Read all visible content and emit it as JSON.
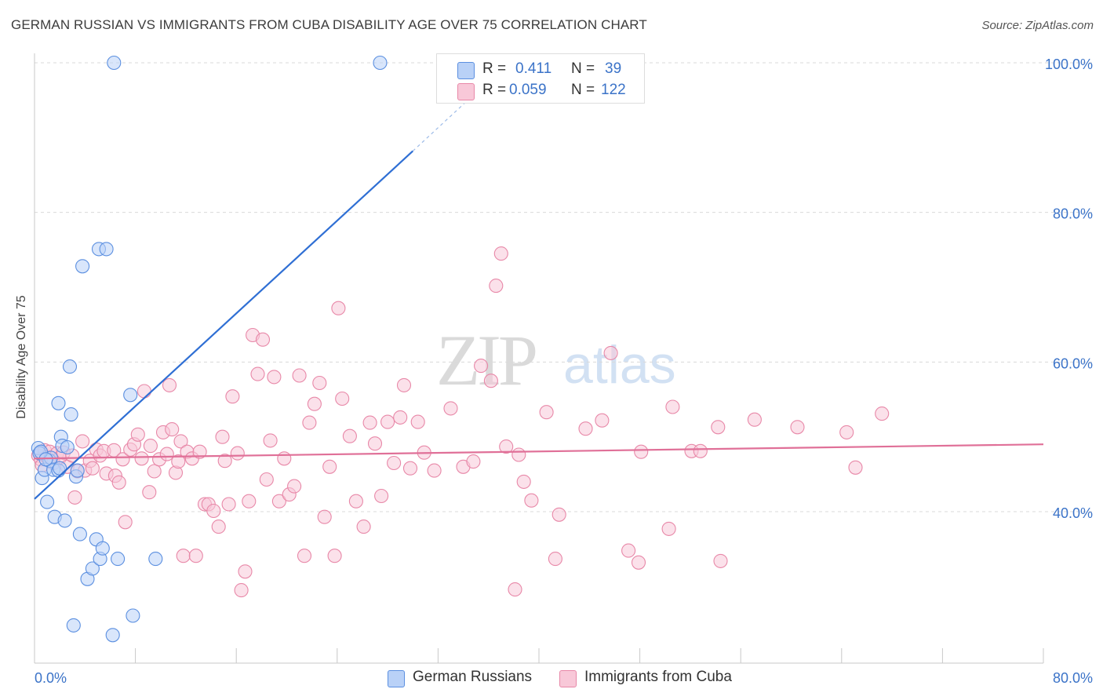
{
  "colors": {
    "series1": "#5b8fe0",
    "series1_fill": "#b9d1f7",
    "series1_line": "#2f6fd4",
    "series2": "#e888a8",
    "series2_fill": "#f8c8d8",
    "series2_line": "#e07098",
    "axis_text": "#3b73c8",
    "grid": "#d9d9d9",
    "watermark": "#dadada"
  },
  "header": {
    "title": "GERMAN RUSSIAN VS IMMIGRANTS FROM CUBA DISABILITY AGE OVER 75 CORRELATION CHART",
    "source": "Source: ZipAtlas.com"
  },
  "legend": {
    "r_label": "R =",
    "n_label": "N =",
    "rows": [
      {
        "r": "0.411",
        "n": "39"
      },
      {
        "r": "0.059",
        "n": "122"
      }
    ]
  },
  "watermark": {
    "zip": "ZIP",
    "atlas": "atlas"
  },
  "chart_data": {
    "type": "scatter",
    "title": "GERMAN RUSSIAN VS IMMIGRANTS FROM CUBA DISABILITY AGE OVER 75 CORRELATION CHART",
    "xlabel": "",
    "ylabel": "Disability Age Over 75",
    "xlim": [
      0,
      80
    ],
    "ylim": [
      22,
      102
    ],
    "x_tick_labels": [
      "0.0%",
      "80.0%"
    ],
    "y_ticks": [
      40,
      60,
      80,
      100
    ],
    "y_tick_labels": [
      "40.0%",
      "60.0%",
      "80.0%",
      "100.0%"
    ],
    "grid": true,
    "legend_position": "top-center",
    "series": [
      {
        "name": "German Russians",
        "r": 0.411,
        "n": 39,
        "trend": {
          "x": [
            0,
            30.0
          ],
          "y": [
            41.7,
            88.2
          ],
          "dashed_to": [
            35.0,
            96.0
          ]
        },
        "points": [
          [
            0.3,
            48.5
          ],
          [
            0.4,
            47.8
          ],
          [
            0.6,
            44.5
          ],
          [
            0.8,
            45.6
          ],
          [
            1.0,
            41.3
          ],
          [
            1.2,
            46.8
          ],
          [
            1.3,
            47.2
          ],
          [
            1.5,
            45.6
          ],
          [
            1.6,
            39.3
          ],
          [
            1.9,
            45.5
          ],
          [
            1.9,
            54.5
          ],
          [
            2.1,
            50.0
          ],
          [
            2.2,
            48.8
          ],
          [
            2.4,
            38.8
          ],
          [
            2.6,
            48.6
          ],
          [
            2.8,
            59.4
          ],
          [
            2.9,
            53.0
          ],
          [
            3.1,
            24.8
          ],
          [
            3.3,
            44.7
          ],
          [
            3.4,
            45.5
          ],
          [
            3.6,
            37.0
          ],
          [
            3.8,
            72.8
          ],
          [
            4.2,
            31.0
          ],
          [
            4.6,
            32.4
          ],
          [
            4.9,
            36.3
          ],
          [
            5.1,
            75.1
          ],
          [
            5.2,
            33.7
          ],
          [
            5.4,
            35.1
          ],
          [
            5.7,
            75.1
          ],
          [
            6.2,
            23.5
          ],
          [
            6.3,
            100.0
          ],
          [
            6.6,
            33.7
          ],
          [
            7.6,
            55.6
          ],
          [
            7.8,
            26.1
          ],
          [
            9.6,
            33.7
          ],
          [
            27.4,
            100.0
          ],
          [
            0.5,
            48.0
          ],
          [
            0.9,
            47.0
          ],
          [
            2.0,
            45.8
          ]
        ]
      },
      {
        "name": "Immigrants from Cuba",
        "r": 0.059,
        "n": 122,
        "trend": {
          "x": [
            0,
            80
          ],
          "y": [
            47.1,
            49.0
          ]
        },
        "points": [
          [
            0.3,
            47.5
          ],
          [
            0.5,
            47.0
          ],
          [
            0.6,
            46.2
          ],
          [
            0.8,
            48.2
          ],
          [
            1.0,
            47.3
          ],
          [
            1.2,
            48.0
          ],
          [
            1.5,
            46.5
          ],
          [
            1.8,
            47.8
          ],
          [
            2.0,
            47.2
          ],
          [
            2.3,
            47.9
          ],
          [
            2.6,
            46.0
          ],
          [
            3.0,
            47.5
          ],
          [
            3.2,
            41.9
          ],
          [
            3.4,
            45.4
          ],
          [
            3.8,
            49.4
          ],
          [
            4.0,
            45.5
          ],
          [
            4.4,
            46.8
          ],
          [
            4.6,
            45.8
          ],
          [
            4.9,
            48.3
          ],
          [
            5.2,
            47.5
          ],
          [
            5.5,
            48.1
          ],
          [
            5.7,
            45.1
          ],
          [
            6.3,
            48.2
          ],
          [
            6.4,
            44.8
          ],
          [
            6.7,
            43.9
          ],
          [
            7.0,
            47.0
          ],
          [
            7.2,
            38.6
          ],
          [
            7.6,
            48.3
          ],
          [
            7.9,
            49.0
          ],
          [
            8.2,
            50.3
          ],
          [
            8.5,
            47.1
          ],
          [
            8.7,
            56.1
          ],
          [
            9.1,
            42.6
          ],
          [
            9.2,
            48.8
          ],
          [
            9.5,
            45.4
          ],
          [
            9.9,
            47.0
          ],
          [
            10.2,
            50.6
          ],
          [
            10.5,
            47.7
          ],
          [
            10.7,
            56.9
          ],
          [
            10.9,
            51.0
          ],
          [
            11.2,
            45.2
          ],
          [
            11.4,
            46.7
          ],
          [
            11.6,
            49.4
          ],
          [
            11.8,
            34.1
          ],
          [
            12.1,
            48.0
          ],
          [
            12.5,
            47.1
          ],
          [
            12.8,
            34.1
          ],
          [
            13.1,
            48.0
          ],
          [
            13.5,
            41.0
          ],
          [
            13.8,
            41.0
          ],
          [
            14.2,
            40.1
          ],
          [
            14.6,
            38.0
          ],
          [
            14.9,
            50.0
          ],
          [
            15.1,
            46.8
          ],
          [
            15.4,
            41.0
          ],
          [
            15.7,
            55.4
          ],
          [
            16.1,
            47.8
          ],
          [
            16.4,
            29.5
          ],
          [
            16.7,
            32.0
          ],
          [
            17.0,
            41.4
          ],
          [
            17.3,
            63.6
          ],
          [
            17.7,
            58.4
          ],
          [
            18.1,
            63.0
          ],
          [
            18.4,
            44.3
          ],
          [
            18.7,
            49.5
          ],
          [
            19.0,
            58.0
          ],
          [
            19.4,
            41.4
          ],
          [
            19.8,
            47.1
          ],
          [
            20.2,
            42.3
          ],
          [
            20.6,
            43.4
          ],
          [
            21.0,
            58.2
          ],
          [
            21.4,
            34.1
          ],
          [
            21.8,
            51.9
          ],
          [
            22.2,
            54.4
          ],
          [
            22.6,
            57.2
          ],
          [
            23.0,
            39.3
          ],
          [
            23.4,
            46.0
          ],
          [
            23.8,
            34.1
          ],
          [
            24.1,
            67.2
          ],
          [
            24.4,
            55.1
          ],
          [
            25.0,
            50.1
          ],
          [
            25.5,
            41.4
          ],
          [
            26.1,
            38.0
          ],
          [
            26.6,
            51.9
          ],
          [
            27.0,
            49.1
          ],
          [
            27.5,
            42.1
          ],
          [
            28.0,
            52.0
          ],
          [
            28.5,
            46.5
          ],
          [
            29.0,
            52.6
          ],
          [
            29.3,
            56.9
          ],
          [
            29.8,
            45.8
          ],
          [
            30.4,
            52.0
          ],
          [
            30.9,
            47.9
          ],
          [
            31.7,
            45.5
          ],
          [
            33.0,
            53.8
          ],
          [
            34.0,
            46.0
          ],
          [
            34.8,
            46.7
          ],
          [
            35.4,
            59.5
          ],
          [
            36.2,
            57.5
          ],
          [
            36.6,
            70.2
          ],
          [
            37.0,
            74.5
          ],
          [
            37.4,
            48.7
          ],
          [
            38.1,
            29.6
          ],
          [
            38.4,
            47.6
          ],
          [
            38.8,
            44.0
          ],
          [
            39.4,
            41.5
          ],
          [
            40.6,
            53.3
          ],
          [
            41.3,
            33.7
          ],
          [
            41.6,
            39.6
          ],
          [
            43.7,
            51.1
          ],
          [
            45.0,
            52.2
          ],
          [
            45.7,
            61.2
          ],
          [
            47.1,
            34.8
          ],
          [
            47.9,
            33.2
          ],
          [
            48.1,
            48.0
          ],
          [
            50.3,
            37.7
          ],
          [
            50.6,
            54.0
          ],
          [
            52.1,
            48.1
          ],
          [
            52.8,
            48.1
          ],
          [
            54.2,
            51.3
          ],
          [
            54.4,
            33.4
          ],
          [
            57.1,
            52.3
          ],
          [
            60.5,
            51.3
          ],
          [
            64.4,
            50.6
          ],
          [
            65.1,
            45.9
          ],
          [
            67.2,
            53.1
          ]
        ]
      }
    ]
  },
  "bottom_legend": [
    {
      "label": "German Russians"
    },
    {
      "label": "Immigrants from Cuba"
    }
  ]
}
